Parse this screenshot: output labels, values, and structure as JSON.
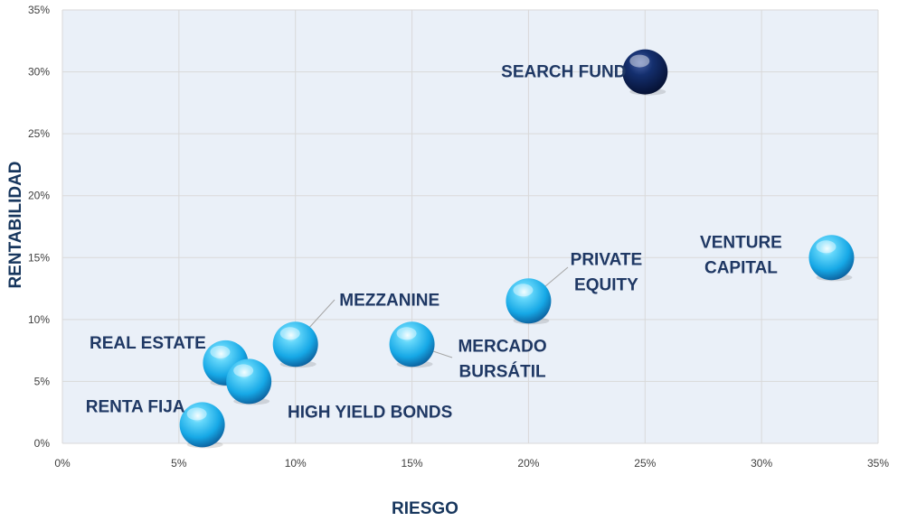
{
  "chart_data": {
    "type": "scatter",
    "xlabel": "RIESGO",
    "ylabel": "RENTABILIDAD",
    "xlim": [
      0,
      35
    ],
    "ylim": [
      0,
      35
    ],
    "x_ticks": [
      "0%",
      "5%",
      "10%",
      "15%",
      "20%",
      "25%",
      "30%",
      "35%"
    ],
    "y_ticks": [
      "0%",
      "5%",
      "10%",
      "15%",
      "20%",
      "25%",
      "30%",
      "35%"
    ],
    "grid": true,
    "legend": "none",
    "colors": {
      "plot_background": "#eaf0f8",
      "bubble_light": "#29c1f2",
      "bubble_dark": "#0b2a6b",
      "label": "#1f3864",
      "axis_title": "#17365d",
      "grid": "#d9d9d9",
      "leader_line": "#a6a6a6"
    },
    "points": [
      {
        "label": "SEARCH FUND",
        "x": 25,
        "y": 30,
        "style": "dark"
      },
      {
        "label": "VENTURE CAPITAL",
        "x": 33,
        "y": 15,
        "style": "light"
      },
      {
        "label": "PRIVATE EQUITY",
        "x": 20,
        "y": 11.5,
        "style": "light"
      },
      {
        "label": "MERCADO BURSÁTIL",
        "x": 15,
        "y": 8,
        "style": "light"
      },
      {
        "label": "MEZZANINE",
        "x": 10,
        "y": 8,
        "style": "light"
      },
      {
        "label": "REAL ESTATE",
        "x": 7,
        "y": 6.5,
        "style": "light"
      },
      {
        "label": "HIGH YIELD BONDS",
        "x": 8,
        "y": 5,
        "style": "light"
      },
      {
        "label": "RENTA FIJA",
        "x": 6,
        "y": 1.5,
        "style": "light"
      }
    ]
  }
}
